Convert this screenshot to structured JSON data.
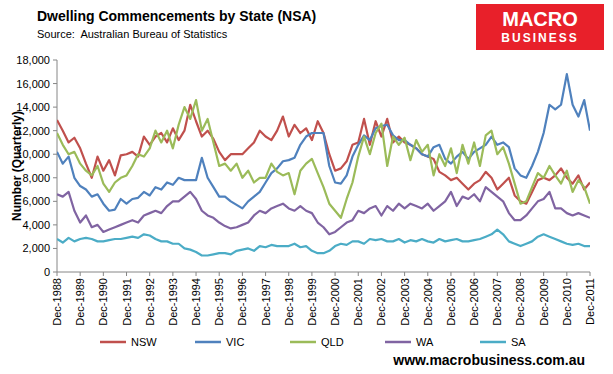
{
  "chart_data": {
    "type": "line",
    "title": "Dwelling Commencements by State (NSA)",
    "subtitle": "Source:  Australian Bureau of Statistics",
    "ylabel": "Number (Quarterly)",
    "annotations": [
      "MACRO",
      "BUSINESS",
      "www.macrobusiness.com.au"
    ],
    "legend": "bottom",
    "grid": false,
    "ylim": [
      0,
      18000
    ],
    "yticks": [
      0,
      {
        "value": 2000,
        "label": "2,000"
      },
      {
        "value": 4000,
        "label": "4,000"
      },
      {
        "value": 6000,
        "label": "6,000"
      },
      {
        "value": 8000,
        "label": "8,000"
      },
      {
        "value": 10000,
        "label": "10,000"
      },
      {
        "value": 12000,
        "label": "12,000"
      },
      {
        "value": 14000,
        "label": "14,000"
      },
      {
        "value": 16000,
        "label": "16,000"
      },
      {
        "value": 18000,
        "label": "18,000"
      }
    ],
    "categories": [
      "Dec-1988",
      null,
      null,
      null,
      "Dec-1989",
      null,
      null,
      null,
      "Dec-1990",
      null,
      null,
      null,
      "Dec-1991",
      null,
      null,
      null,
      "Dec-1992",
      null,
      null,
      null,
      "Dec-1993",
      null,
      null,
      null,
      "Dec-1994",
      null,
      null,
      null,
      "Dec-1995",
      null,
      null,
      null,
      "Dec-1996",
      null,
      null,
      null,
      "Dec-1997",
      null,
      null,
      null,
      "Dec-1998",
      null,
      null,
      null,
      "Dec-1999",
      null,
      null,
      null,
      "Dec-2000",
      null,
      null,
      null,
      "Dec-2001",
      null,
      null,
      null,
      "Dec-2002",
      null,
      null,
      null,
      "Dec-2003",
      null,
      null,
      null,
      "Dec-2004",
      null,
      null,
      null,
      "Dec-2005",
      null,
      null,
      null,
      "Dec-2006",
      null,
      null,
      null,
      "Dec-2007",
      null,
      null,
      null,
      "Dec-2008",
      null,
      null,
      null,
      "Dec-2009",
      null,
      null,
      null,
      "Dec-2010",
      null,
      null,
      null,
      "Dec-2011"
    ],
    "series": [
      {
        "name": "NSW",
        "color": "#c0504d",
        "values": [
          12900,
          12000,
          11000,
          11400,
          10500,
          9200,
          8000,
          9800,
          8600,
          9500,
          8200,
          9900,
          10000,
          10200,
          9800,
          11500,
          10800,
          11500,
          11800,
          11000,
          12200,
          11200,
          12000,
          14200,
          12800,
          11500,
          12000,
          11300,
          10200,
          9500,
          10000,
          10000,
          10000,
          10500,
          11000,
          12000,
          11500,
          11200,
          12000,
          13200,
          11500,
          12500,
          11800,
          12200,
          11200,
          12800,
          11800,
          10000,
          8600,
          8800,
          9400,
          10800,
          11000,
          13000,
          10800,
          12800,
          11500,
          13000,
          11000,
          11500,
          11000,
          10800,
          10500,
          10000,
          9800,
          9600,
          8500,
          8200,
          7800,
          8000,
          7500,
          7000,
          7500,
          7800,
          8500,
          8000,
          7000,
          7500,
          8000,
          6500,
          6000,
          5800,
          6800,
          7800,
          8000,
          7800,
          8200,
          8800,
          8000,
          7500,
          8200,
          7000,
          7600
        ]
      },
      {
        "name": "VIC",
        "color": "#4f81bd",
        "values": [
          10200,
          9200,
          9800,
          8000,
          7300,
          7000,
          6400,
          6600,
          5800,
          5200,
          5300,
          6200,
          5800,
          6200,
          6300,
          6800,
          6500,
          7200,
          7000,
          7600,
          7400,
          8000,
          7800,
          7800,
          7800,
          9700,
          8000,
          7200,
          6400,
          6400,
          6000,
          5700,
          5400,
          6000,
          6400,
          6800,
          7600,
          8400,
          8800,
          9400,
          9500,
          9700,
          10800,
          11500,
          11800,
          11800,
          11800,
          9000,
          7600,
          7500,
          8200,
          9800,
          10800,
          11600,
          11200,
          12200,
          12400,
          12500,
          11600,
          11200,
          11200,
          10800,
          10500,
          10000,
          9800,
          10600,
          10800,
          9600,
          9200,
          9800,
          10200,
          9600,
          10200,
          10500,
          10800,
          11500,
          10800,
          11000,
          10600,
          8800,
          8200,
          8000,
          9000,
          10200,
          11800,
          14200,
          13800,
          14200,
          16800,
          14200,
          13200,
          14600,
          12000
        ]
      },
      {
        "name": "QLD",
        "color": "#9bbb59",
        "values": [
          11800,
          10800,
          10000,
          10200,
          9200,
          8600,
          8200,
          9000,
          7500,
          6800,
          7600,
          8000,
          8200,
          9000,
          10000,
          9800,
          10500,
          12000,
          11000,
          12000,
          10500,
          12500,
          14000,
          13000,
          14600,
          12000,
          13000,
          11000,
          9000,
          9200,
          8600,
          9200,
          8000,
          8600,
          7600,
          8000,
          8000,
          9200,
          8500,
          8200,
          8400,
          6600,
          8600,
          9200,
          9600,
          8400,
          7200,
          5800,
          5200,
          4600,
          6200,
          7600,
          9800,
          11500,
          10000,
          11800,
          12600,
          9000,
          11500,
          10800,
          11400,
          9500,
          11200,
          10200,
          10800,
          8200,
          10000,
          9000,
          10500,
          8400,
          10800,
          9200,
          11000,
          9000,
          11600,
          12000,
          10000,
          10600,
          9200,
          7500,
          5800,
          6000,
          7200,
          8400,
          8000,
          9000,
          8200,
          7500,
          8600,
          6800,
          7800,
          7200,
          5800
        ]
      },
      {
        "name": "WA",
        "color": "#8064a2",
        "values": [
          6600,
          6400,
          6800,
          5200,
          4200,
          4800,
          3800,
          4000,
          3400,
          3600,
          3800,
          4000,
          4200,
          4400,
          4200,
          4800,
          5000,
          5200,
          5000,
          5600,
          6000,
          6000,
          6400,
          6800,
          6200,
          5200,
          4800,
          4600,
          4200,
          3900,
          3700,
          3800,
          4000,
          4200,
          4800,
          5200,
          5000,
          5400,
          5600,
          5800,
          5400,
          5200,
          5600,
          5200,
          5000,
          4200,
          3800,
          3200,
          3400,
          3800,
          4200,
          4400,
          5200,
          5000,
          5400,
          5600,
          4800,
          5600,
          5200,
          5800,
          5400,
          5800,
          5600,
          5400,
          5800,
          5200,
          5600,
          6000,
          6800,
          5600,
          6400,
          6200,
          6600,
          6000,
          7200,
          6800,
          6400,
          6000,
          5000,
          4400,
          4400,
          4800,
          5400,
          6000,
          6200,
          6800,
          5400,
          5400,
          5000,
          4800,
          5000,
          4800,
          4600
        ]
      },
      {
        "name": "SA",
        "color": "#4bacc6",
        "values": [
          2800,
          2500,
          2900,
          2600,
          2800,
          2900,
          2800,
          2600,
          2600,
          2700,
          2800,
          2800,
          2900,
          3000,
          2900,
          3200,
          3100,
          2800,
          2600,
          2600,
          2400,
          2400,
          2000,
          1900,
          1700,
          1400,
          1400,
          1500,
          1600,
          1600,
          1500,
          1800,
          1900,
          2000,
          1800,
          2200,
          2100,
          2300,
          2200,
          2200,
          2200,
          2400,
          2100,
          2200,
          1800,
          1600,
          1600,
          1800,
          2200,
          2400,
          2300,
          2600,
          2600,
          2400,
          2800,
          2700,
          2800,
          2600,
          2600,
          2800,
          2500,
          2700,
          2600,
          2800,
          2600,
          2500,
          2800,
          2600,
          2700,
          2800,
          2600,
          2600,
          2700,
          2800,
          3000,
          3200,
          3600,
          3200,
          2600,
          2400,
          2200,
          2400,
          2600,
          3000,
          3200,
          3000,
          2800,
          2600,
          2400,
          2300,
          2400,
          2200,
          2200
        ]
      }
    ]
  }
}
